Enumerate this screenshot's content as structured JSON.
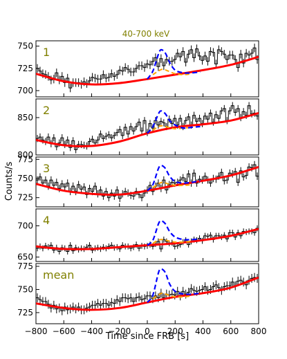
{
  "chart_data": {
    "type": "line",
    "title": "40-700 keV",
    "xlabel": "Time since FRB [s]",
    "ylabel": "Counts/s",
    "xlim": [
      -800,
      800
    ],
    "xticks": [
      -800,
      -600,
      -400,
      -200,
      0,
      200,
      400,
      600,
      800
    ],
    "grid": false,
    "bin_width": 40,
    "colors": {
      "title": "#808000",
      "panel_label": "#808000",
      "data": "#000000",
      "fit": "#ff0000",
      "model_strong": "#0000ff",
      "model_weak": "#ffa500"
    },
    "series_keys": [
      "Background fit (red)",
      "Burst model, upper (blue, dashed)",
      "Burst model, lower (orange, dashed)"
    ],
    "panels": [
      {
        "label": "1",
        "ylim": [
          693,
          756
        ],
        "yticks": [
          700,
          725,
          750
        ],
        "counts": [
          725,
          722,
          719,
          718,
          716,
          712,
          713,
          720,
          712,
          716,
          709,
          714,
          703,
          709,
          709,
          709,
          707,
          710,
          708,
          711,
          715,
          714,
          713,
          713,
          718,
          714,
          715,
          719,
          716,
          718,
          723,
          722,
          726,
          724,
          721,
          721,
          725,
          728,
          728,
          726,
          730,
          729,
          733,
          737,
          727,
          736,
          728,
          735,
          733,
          733,
          735,
          742,
          738,
          744,
          732,
          741,
          746,
          737,
          747,
          739,
          734,
          739,
          733,
          744,
          743,
          730,
          746,
          744,
          741,
          735,
          740,
          740,
          735,
          726,
          741,
          731,
          742,
          740,
          742,
          748,
          735
        ],
        "fit": [
          [
            -800,
            719
          ],
          [
            -600,
            710.5
          ],
          [
            -400,
            707
          ],
          [
            -200,
            708.5
          ],
          [
            0,
            713
          ],
          [
            200,
            718
          ],
          [
            400,
            723
          ],
          [
            600,
            729
          ],
          [
            800,
            738
          ]
        ],
        "model_strong": [
          [
            0,
            713
          ],
          [
            40,
            722
          ],
          [
            80,
            741
          ],
          [
            100,
            746
          ],
          [
            130,
            742
          ],
          [
            160,
            732
          ],
          [
            200,
            723
          ],
          [
            260,
            720
          ],
          [
            320,
            720
          ],
          [
            380,
            721
          ]
        ],
        "model_weak": [
          [
            40,
            718
          ],
          [
            80,
            722
          ],
          [
            110,
            724
          ],
          [
            150,
            722
          ],
          [
            200,
            719
          ],
          [
            260,
            718
          ],
          [
            320,
            719
          ]
        ]
      },
      {
        "label": "2",
        "ylim": [
          800,
          875
        ],
        "yticks": [
          800,
          850
        ],
        "counts": [
          822,
          824,
          820,
          818,
          824,
          815,
          823,
          811,
          816,
          823,
          814,
          820,
          810,
          819,
          807,
          814,
          814,
          813,
          812,
          818,
          821,
          816,
          820,
          828,
          822,
          825,
          827,
          823,
          826,
          830,
          834,
          826,
          837,
          828,
          838,
          832,
          838,
          844,
          832,
          846,
          830,
          842,
          836,
          846,
          840,
          845,
          843,
          838,
          848,
          842,
          849,
          840,
          849,
          838,
          846,
          851,
          840,
          853,
          845,
          849,
          842,
          852,
          848,
          856,
          844,
          854,
          849,
          859,
          862,
          846,
          859,
          866,
          857,
          862,
          850,
          858,
          853,
          866,
          855,
          856,
          852
        ],
        "fit": [
          [
            -800,
            820
          ],
          [
            -600,
            813
          ],
          [
            -400,
            812
          ],
          [
            -200,
            818
          ],
          [
            0,
            829
          ],
          [
            200,
            837
          ],
          [
            400,
            841
          ],
          [
            600,
            846
          ],
          [
            800,
            856
          ]
        ],
        "model_strong": [
          [
            0,
            829
          ],
          [
            40,
            838
          ],
          [
            80,
            855
          ],
          [
            100,
            859
          ],
          [
            130,
            855
          ],
          [
            160,
            846
          ],
          [
            200,
            840
          ],
          [
            260,
            836
          ],
          [
            320,
            837
          ],
          [
            380,
            838
          ]
        ],
        "model_weak": [
          [
            40,
            833
          ],
          [
            80,
            838
          ],
          [
            110,
            839
          ],
          [
            150,
            837
          ],
          [
            200,
            835
          ],
          [
            260,
            836
          ],
          [
            320,
            837
          ]
        ]
      },
      {
        "label": "3",
        "ylim": [
          713,
          778
        ],
        "yticks": [
          725,
          750,
          775
        ],
        "counts": [
          748,
          752,
          744,
          748,
          740,
          748,
          741,
          745,
          737,
          743,
          739,
          744,
          733,
          740,
          733,
          742,
          736,
          739,
          729,
          737,
          733,
          740,
          730,
          735,
          727,
          733,
          725,
          731,
          727,
          735,
          724,
          730,
          733,
          731,
          728,
          727,
          733,
          729,
          725,
          731,
          735,
          741,
          733,
          740,
          744,
          737,
          748,
          735,
          742,
          745,
          744,
          745,
          748,
          751,
          746,
          756,
          744,
          757,
          744,
          749,
          748,
          753,
          748,
          744,
          750,
          749,
          753,
          758,
          747,
          748,
          757,
          756,
          759,
          745,
          760,
          752,
          754,
          765,
          764,
          768,
          753
        ],
        "fit": [
          [
            -800,
            743
          ],
          [
            -600,
            734
          ],
          [
            -400,
            730
          ],
          [
            -200,
            729
          ],
          [
            0,
            734
          ],
          [
            200,
            741
          ],
          [
            400,
            747
          ],
          [
            600,
            754
          ],
          [
            800,
            765
          ]
        ],
        "model_strong": [
          [
            0,
            734
          ],
          [
            40,
            742
          ],
          [
            80,
            763
          ],
          [
            100,
            767
          ],
          [
            130,
            763
          ],
          [
            160,
            753
          ],
          [
            200,
            746
          ],
          [
            260,
            744
          ],
          [
            320,
            745
          ],
          [
            380,
            747
          ]
        ],
        "model_weak": [
          [
            40,
            738
          ],
          [
            80,
            743
          ],
          [
            110,
            745
          ],
          [
            150,
            743
          ],
          [
            200,
            741
          ],
          [
            260,
            741
          ],
          [
            320,
            742
          ]
        ]
      },
      {
        "label": "4",
        "ylim": [
          643,
          727
        ],
        "yticks": [
          650,
          700
        ],
        "counts": [
          664,
          667,
          664,
          668,
          666,
          669,
          661,
          665,
          659,
          665,
          664,
          659,
          669,
          660,
          665,
          662,
          664,
          663,
          666,
          669,
          661,
          664,
          665,
          663,
          666,
          664,
          667,
          669,
          665,
          666,
          663,
          669,
          667,
          667,
          664,
          666,
          670,
          664,
          668,
          667,
          668,
          670,
          667,
          671,
          675,
          663,
          678,
          675,
          672,
          673,
          667,
          668,
          670,
          674,
          677,
          670,
          675,
          678,
          677,
          680,
          676,
          684,
          683,
          685,
          678,
          684,
          684,
          682,
          685,
          679,
          689,
          689,
          682,
          689,
          684,
          691,
          690,
          691,
          691,
          689,
          696
        ],
        "fit": [
          [
            -800,
            667
          ],
          [
            -600,
            663
          ],
          [
            -400,
            663
          ],
          [
            -200,
            666
          ],
          [
            0,
            669
          ],
          [
            200,
            672
          ],
          [
            400,
            677
          ],
          [
            600,
            684
          ],
          [
            800,
            695
          ]
        ],
        "model_strong": [
          [
            0,
            669
          ],
          [
            40,
            677
          ],
          [
            80,
            703
          ],
          [
            100,
            708
          ],
          [
            130,
            703
          ],
          [
            160,
            691
          ],
          [
            200,
            682
          ],
          [
            260,
            678
          ],
          [
            320,
            678
          ],
          [
            380,
            679
          ]
        ],
        "model_weak": [
          [
            40,
            672
          ],
          [
            80,
            677
          ],
          [
            110,
            678
          ],
          [
            150,
            676
          ],
          [
            200,
            674
          ],
          [
            260,
            674
          ],
          [
            320,
            675
          ]
        ]
      },
      {
        "label": "mean",
        "ylim": [
          713,
          778
        ],
        "yticks": [
          725,
          750,
          775
        ],
        "counts": [
          741,
          739,
          737,
          737,
          734,
          730,
          733,
          729,
          730,
          727,
          731,
          728,
          729,
          731,
          729,
          731,
          728,
          728,
          730,
          731,
          733,
          733,
          735,
          733,
          735,
          735,
          733,
          736,
          735,
          739,
          737,
          741,
          741,
          740,
          741,
          737,
          741,
          742,
          739,
          740,
          743,
          743,
          740,
          743,
          741,
          746,
          741,
          745,
          744,
          745,
          744,
          748,
          743,
          748,
          745,
          747,
          751,
          749,
          748,
          749,
          750,
          753,
          749,
          750,
          753,
          755,
          752,
          749,
          753,
          754,
          754,
          758,
          754,
          759,
          760,
          758,
          755,
          760,
          762,
          763,
          762
        ],
        "fit": [
          [
            -800,
            735
          ],
          [
            -600,
            730
          ],
          [
            -400,
            728
          ],
          [
            -200,
            730
          ],
          [
            0,
            736
          ],
          [
            200,
            742
          ],
          [
            400,
            746
          ],
          [
            600,
            752
          ],
          [
            800,
            763
          ]
        ],
        "model_strong": [
          [
            0,
            736
          ],
          [
            40,
            744
          ],
          [
            80,
            768
          ],
          [
            100,
            772
          ],
          [
            130,
            768
          ],
          [
            160,
            756
          ],
          [
            200,
            748
          ],
          [
            260,
            745
          ],
          [
            320,
            745
          ],
          [
            380,
            746
          ]
        ],
        "model_weak": [
          [
            40,
            740
          ],
          [
            80,
            744
          ],
          [
            110,
            746
          ],
          [
            150,
            744
          ],
          [
            200,
            742
          ],
          [
            260,
            742
          ],
          [
            320,
            743
          ]
        ]
      }
    ]
  }
}
